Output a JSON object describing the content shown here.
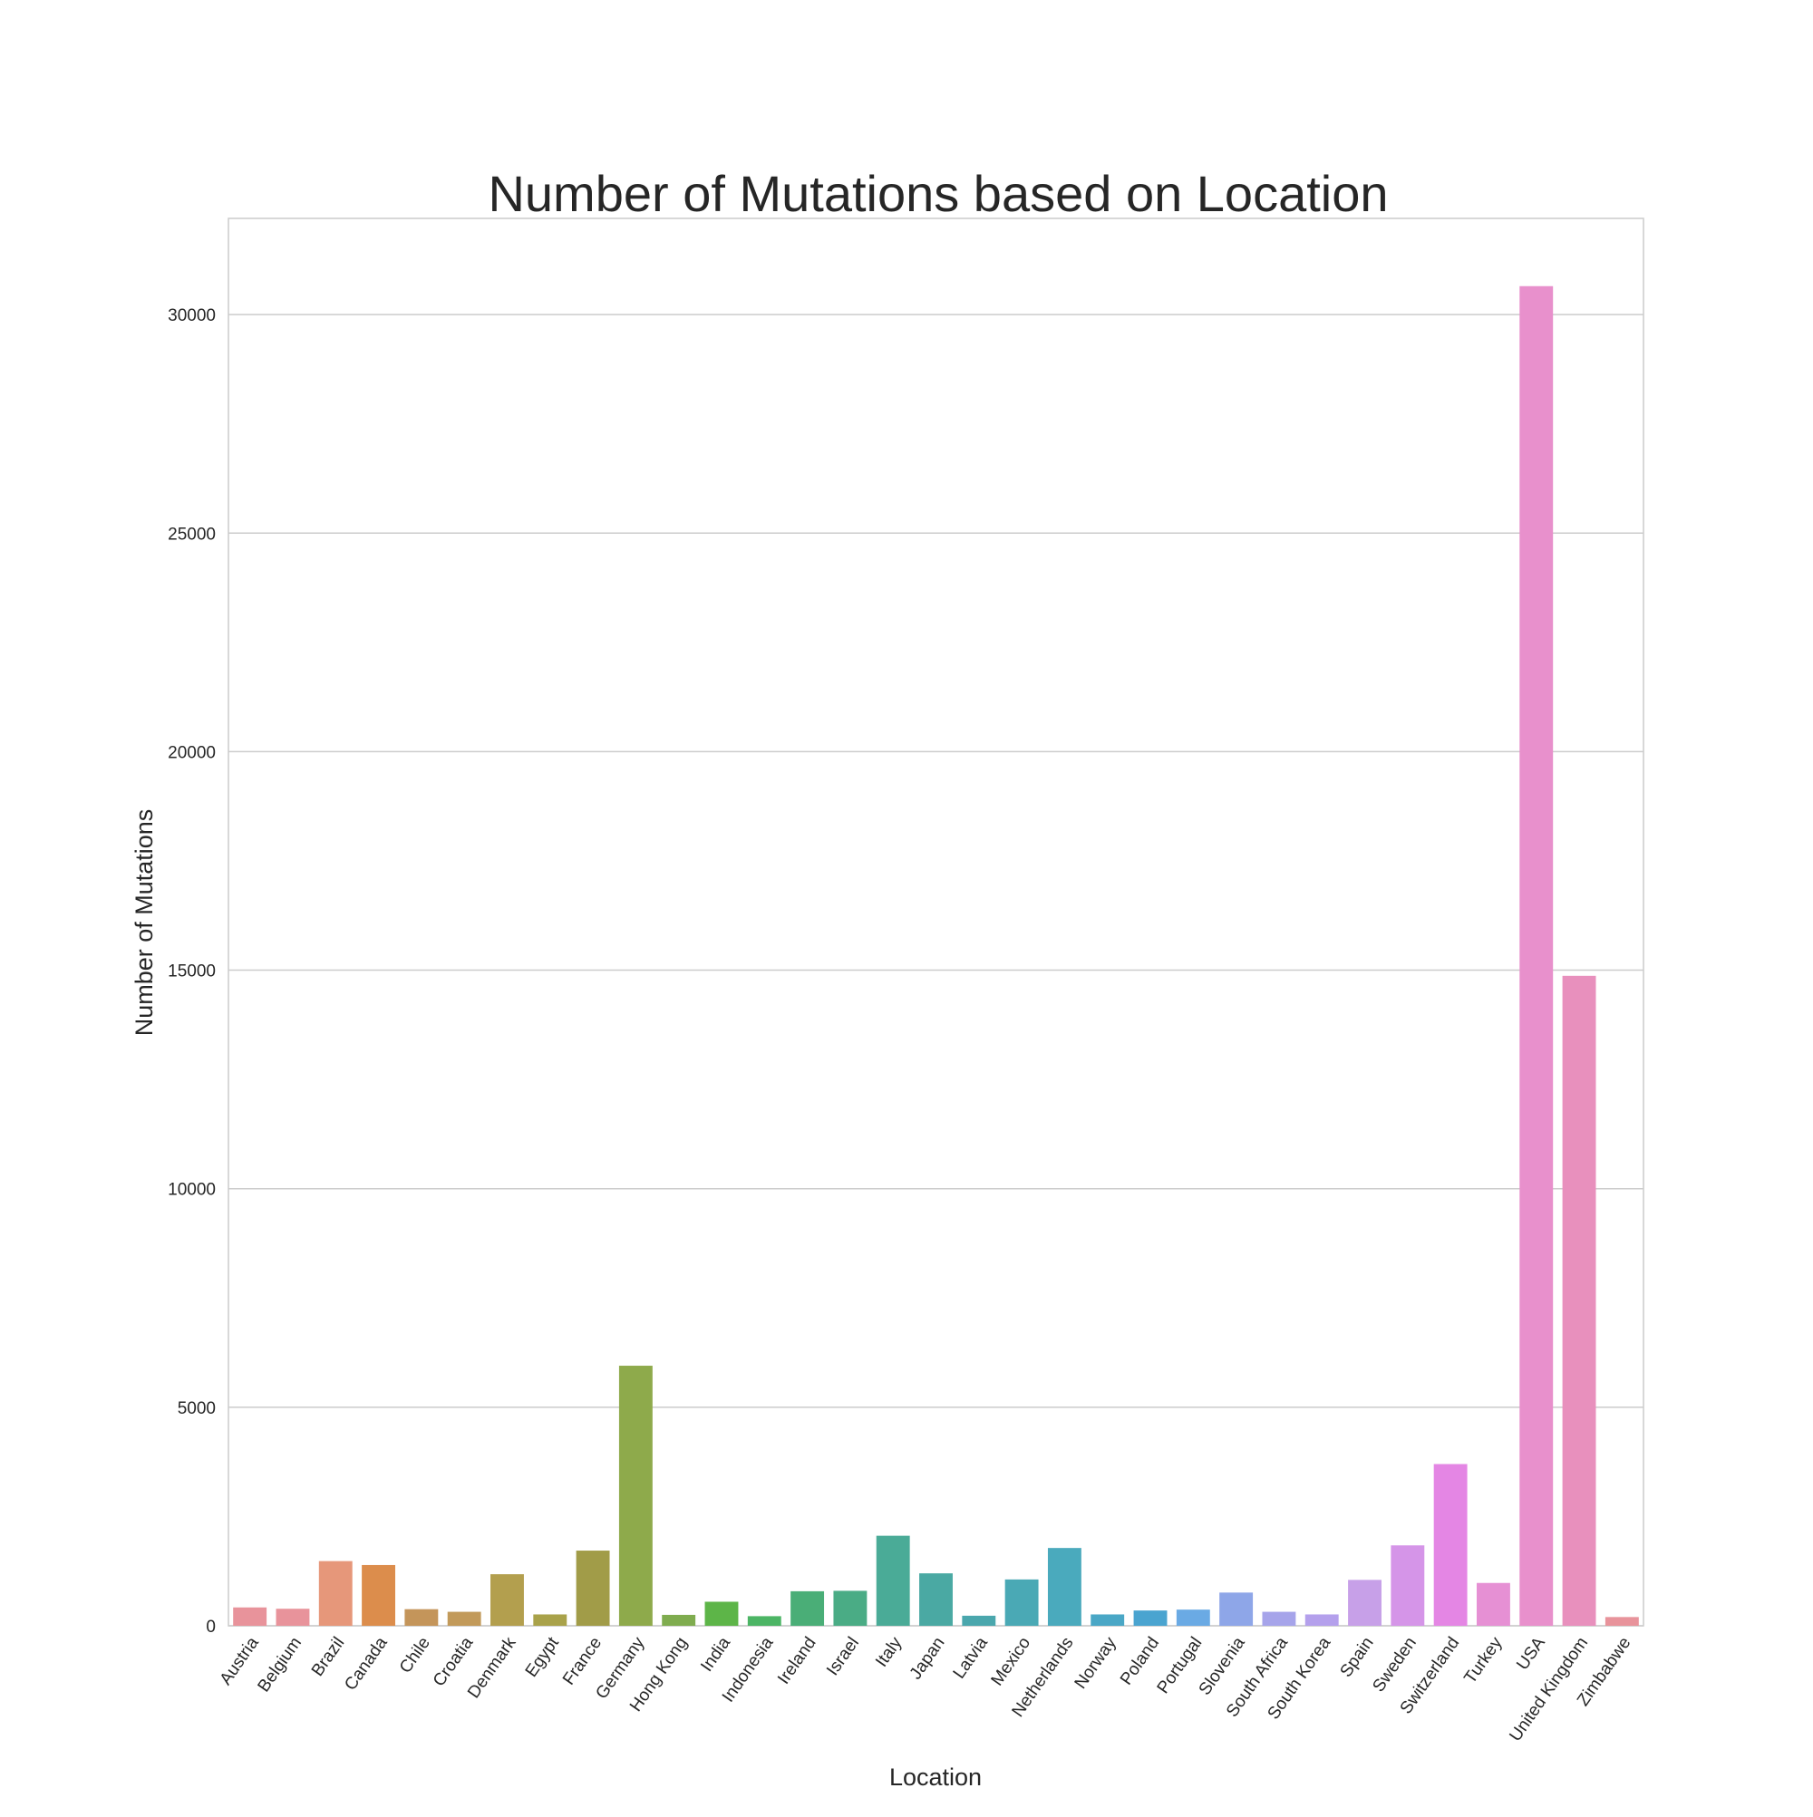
{
  "chart_data": {
    "type": "bar",
    "title": "Number of Mutations based on Location",
    "xlabel": "Location",
    "ylabel": "Number of Mutations",
    "ylim": [
      0,
      32200
    ],
    "yticks": [
      0,
      5000,
      10000,
      15000,
      20000,
      25000,
      30000
    ],
    "grid": "horizontal",
    "categories": [
      "Austria",
      "Belgium",
      "Brazil",
      "Canada",
      "Chile",
      "Croatia",
      "Denmark",
      "Egypt",
      "France",
      "Germany",
      "Hong Kong",
      "India",
      "Indonesia",
      "Ireland",
      "Israel",
      "Italy",
      "Japan",
      "Latvia",
      "Mexico",
      "Netherlands",
      "Norway",
      "Poland",
      "Portugal",
      "Slovenia",
      "South Africa",
      "South Korea",
      "Spain",
      "Sweden",
      "Switzerland",
      "Turkey",
      "USA",
      "United Kingdom",
      "Zimbabwe"
    ],
    "values": [
      420,
      390,
      1480,
      1390,
      380,
      320,
      1180,
      260,
      1720,
      5950,
      250,
      550,
      220,
      790,
      800,
      2060,
      1200,
      230,
      1060,
      1780,
      260,
      350,
      370,
      760,
      320,
      260,
      1050,
      1840,
      3700,
      980,
      30650,
      14870,
      200
    ],
    "colors": [
      "#e8939b",
      "#e8939b",
      "#e6977a",
      "#dc8d4c",
      "#c4955a",
      "#c29a5a",
      "#b39f4e",
      "#a9a24a",
      "#a19c48",
      "#8eaa4b",
      "#7fac4f",
      "#5db548",
      "#4cb565",
      "#4aae77",
      "#4aac85",
      "#4aab97",
      "#4aa9a3",
      "#4aa7ad",
      "#4aa9b5",
      "#4aaabd",
      "#4aa7c6",
      "#4aa4d0",
      "#6aaae4",
      "#8ea6e8",
      "#a6a4ea",
      "#b4a0ec",
      "#c7a0e8",
      "#d595e8",
      "#e486e4",
      "#e690d4",
      "#e890cc",
      "#e890bd",
      "#e8939b"
    ]
  }
}
